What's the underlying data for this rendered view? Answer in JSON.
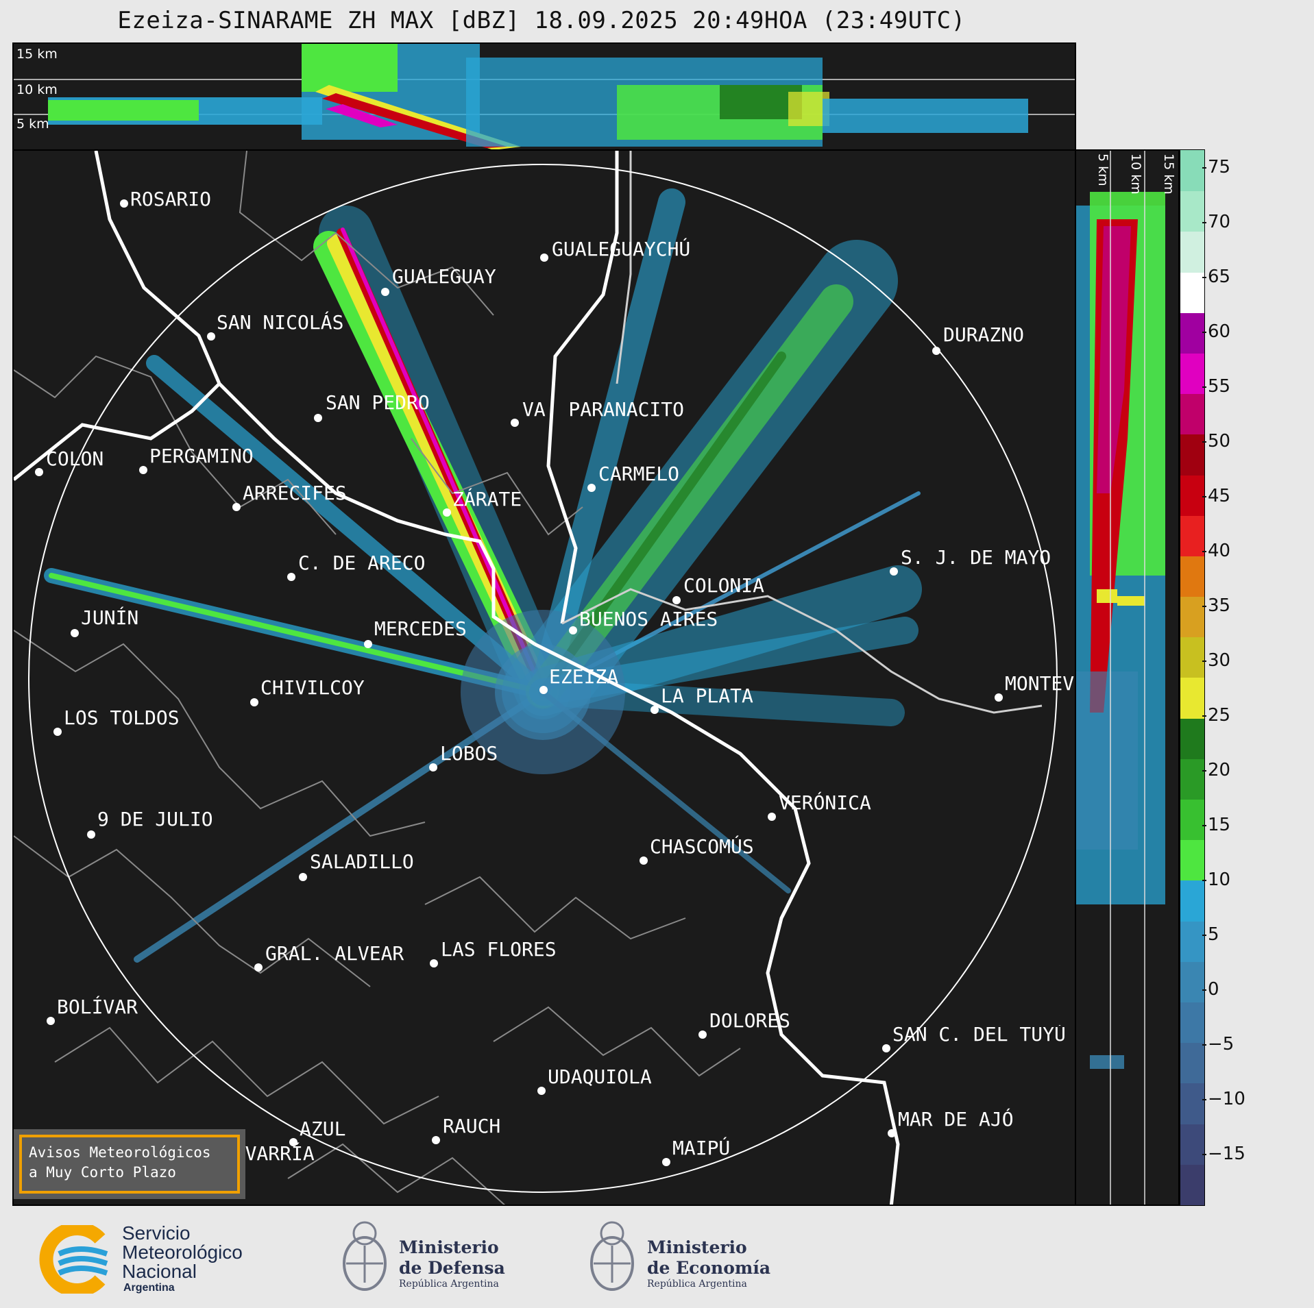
{
  "title": "Ezeiza-SINARAME ZH MAX [dBZ] 18.09.2025 20:49HOA (23:49UTC)",
  "top_panel": {
    "labels": [
      "15 km",
      "10 km",
      "5 km"
    ]
  },
  "side_panel": {
    "labels": [
      "5 km",
      "10 km",
      "15 km"
    ]
  },
  "cities": [
    {
      "name": "ROSARIO"
    },
    {
      "name": "GUALEGUAYCHÚ"
    },
    {
      "name": "GUALEGUAY"
    },
    {
      "name": "SAN NICOLÁS"
    },
    {
      "name": "DURAZNO"
    },
    {
      "name": "SAN PEDRO"
    },
    {
      "name": "VA. PARANACITO"
    },
    {
      "name": "COLON"
    },
    {
      "name": "PERGAMINO"
    },
    {
      "name": "CARMELO"
    },
    {
      "name": "ARRECIFES"
    },
    {
      "name": "ZÁRATE"
    },
    {
      "name": "S. J. DE MAYO"
    },
    {
      "name": "C. DE ARECO"
    },
    {
      "name": "COLONIA"
    },
    {
      "name": "JUNÍN"
    },
    {
      "name": "MERCEDES"
    },
    {
      "name": "BUENOS AIRES"
    },
    {
      "name": "EZEIZA"
    },
    {
      "name": "MONTEVIDEO"
    },
    {
      "name": "CHIVILCOY"
    },
    {
      "name": "LA PLATA"
    },
    {
      "name": "LOS TOLDOS"
    },
    {
      "name": "LOBOS"
    },
    {
      "name": "VERÓNICA"
    },
    {
      "name": "9 DE JULIO"
    },
    {
      "name": "CHASCOMÚS"
    },
    {
      "name": "SALADILLO"
    },
    {
      "name": "GRAL. ALVEAR"
    },
    {
      "name": "LAS FLORES"
    },
    {
      "name": "BOLÍVAR"
    },
    {
      "name": "DOLORES"
    },
    {
      "name": "SAN C. DEL TUYÚ"
    },
    {
      "name": "UDAQUIOLA"
    },
    {
      "name": "MAR DE AJÓ"
    },
    {
      "name": "AZUL"
    },
    {
      "name": "RAUCH"
    },
    {
      "name": "MAIPÚ"
    },
    {
      "name": "OLAVARRÍA"
    }
  ],
  "colorbar": {
    "ticks": [
      "75",
      "70",
      "65",
      "60",
      "55",
      "50",
      "45",
      "40",
      "35",
      "30",
      "25",
      "20",
      "15",
      "10",
      "5",
      "0",
      "−5",
      "−10",
      "−15"
    ],
    "colors": [
      "#3b3d6b",
      "#3d4a7a",
      "#3f5a8a",
      "#3f6a98",
      "#3d78a6",
      "#3a86b2",
      "#3595c4",
      "#2aa6d6",
      "#4ee640",
      "#38c030",
      "#2a9a26",
      "#1f7a1d",
      "#e8e830",
      "#c8c020",
      "#d8a020",
      "#e07810",
      "#e82020",
      "#c80010",
      "#a00010",
      "#c0006a",
      "#e000c0",
      "#a000a0",
      "#ffffff",
      "#d0f0e0",
      "#a8e8c8",
      "#88dcb8"
    ]
  },
  "avisos": {
    "line1": "Avisos Meteorológicos",
    "line2": "a Muy Corto Plazo"
  },
  "logos": {
    "smn": {
      "line1": "Servicio",
      "line2": "Meteorológico",
      "line3": "Nacional",
      "line4": "Argentina"
    },
    "defensa": {
      "line1": "Ministerio",
      "line2": "de Defensa",
      "line3": "República Argentina"
    },
    "economia": {
      "line1": "Ministerio",
      "line2": "de Economía",
      "line3": "República Argentina"
    }
  }
}
